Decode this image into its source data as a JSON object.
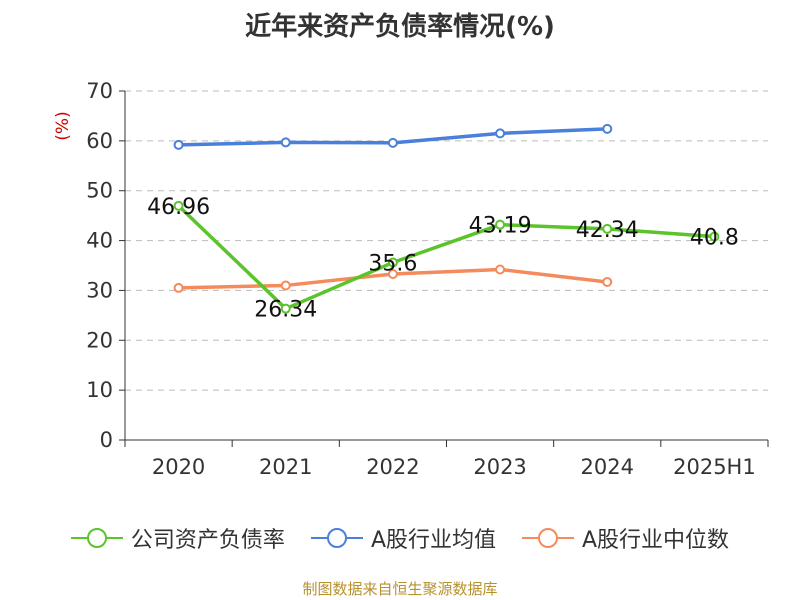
{
  "colors": {
    "company": "#5ac42a",
    "industry_avg": "#4a7fdc",
    "industry_median": "#f58b5c",
    "grid": "#bbbbbb",
    "axis": "#333333",
    "ylabel": "#cc0000",
    "source": "#b8912e"
  },
  "chart_data": {
    "type": "line",
    "title": "近年来资产负债率情况(%)",
    "ylabel": "(%)",
    "xlabel": "",
    "categories": [
      "2020",
      "2021",
      "2022",
      "2023",
      "2024",
      "2025H1"
    ],
    "ylim": [
      0,
      70
    ],
    "yticks": [
      0,
      10,
      20,
      30,
      40,
      50,
      60,
      70
    ],
    "grid": true,
    "legend_position": "bottom",
    "series": [
      {
        "name": "公司资产负债率",
        "color_key": "company",
        "values": [
          46.96,
          26.34,
          35.6,
          43.19,
          42.34,
          40.8
        ],
        "labels": [
          "46.96",
          "26.34",
          "35.6",
          "43.19",
          "42.34",
          "40.8"
        ]
      },
      {
        "name": "A股行业均值",
        "color_key": "industry_avg",
        "values": [
          59.2,
          59.7,
          59.6,
          61.5,
          62.4,
          null
        ],
        "labels": null
      },
      {
        "name": "A股行业中位数",
        "color_key": "industry_median",
        "values": [
          30.5,
          31.0,
          33.3,
          34.2,
          31.7,
          null
        ],
        "labels": null
      }
    ]
  },
  "source_note": "制图数据来自恒生聚源数据库"
}
